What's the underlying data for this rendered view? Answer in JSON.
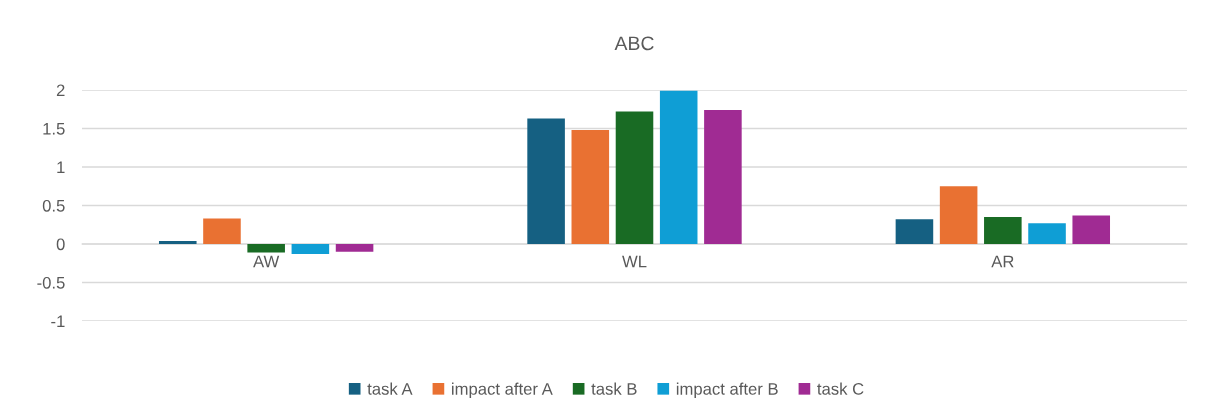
{
  "chart_data": {
    "type": "bar",
    "title": "ABC",
    "categories": [
      "AW",
      "WL",
      "AR"
    ],
    "series": [
      {
        "name": "task A",
        "color": "#156082",
        "values": [
          0.04,
          1.63,
          0.32
        ]
      },
      {
        "name": "impact after A",
        "color": "#e97132",
        "values": [
          0.33,
          1.48,
          0.75
        ]
      },
      {
        "name": "task B",
        "color": "#196b24",
        "values": [
          -0.11,
          1.72,
          0.35
        ]
      },
      {
        "name": "impact after B",
        "color": "#0f9ed5",
        "values": [
          -0.13,
          1.99,
          0.27
        ]
      },
      {
        "name": "task C",
        "color": "#a02b93",
        "values": [
          -0.1,
          1.74,
          0.37
        ]
      }
    ],
    "ylim": [
      -1,
      2
    ],
    "yticks": [
      -1,
      -0.5,
      0,
      0.5,
      1,
      1.5,
      2
    ],
    "grid": "y",
    "legend": "bottom"
  }
}
